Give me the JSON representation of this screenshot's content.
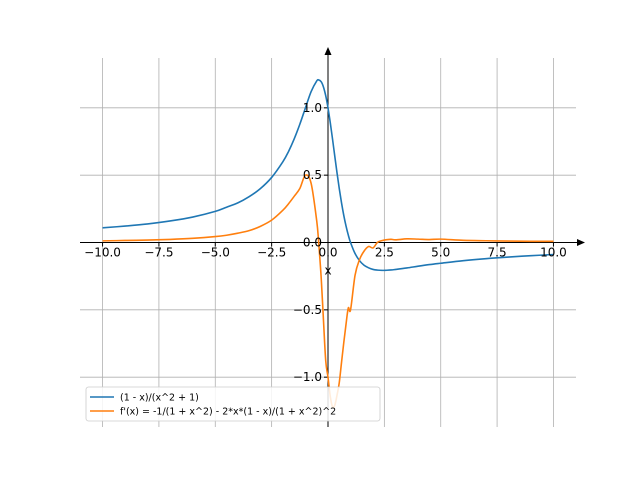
{
  "chart_data": {
    "type": "line",
    "xlabel": "x",
    "ylabel": "",
    "xlim": [
      -11.0,
      11.0
    ],
    "ylim": [
      -1.37,
      1.37
    ],
    "grid": true,
    "legend_location": "lower-left",
    "x_ticks": [
      -10.0,
      -7.5,
      -5.0,
      -2.5,
      0.0,
      2.5,
      5.0,
      7.5,
      10.0
    ],
    "x_tick_labels": [
      "−10.0",
      "−7.5",
      "−5.0",
      "−2.5",
      "0.0",
      "2.5",
      "5.0",
      "7.5",
      "10.0"
    ],
    "y_ticks": [
      -1.0,
      -0.5,
      0.0,
      0.5,
      1.0
    ],
    "y_tick_labels": [
      "−1.0",
      "−0.5",
      "0.0",
      "0.5",
      "1.0"
    ],
    "series": [
      {
        "name": "(1 - x)/(x^2 + 1)",
        "color": "#1f77b4",
        "x": [
          -10,
          -9,
          -8,
          -7,
          -6,
          -5,
          -4.5,
          -4,
          -3.5,
          -3,
          -2.5,
          -2,
          -1.75,
          -1.5,
          -1.25,
          -1,
          -0.75,
          -0.5,
          -0.414,
          -0.3,
          -0.2,
          -0.1,
          0,
          0.1,
          0.2,
          0.3,
          0.4,
          0.5,
          0.6,
          0.7,
          0.8,
          0.9,
          1,
          1.2,
          1.4,
          1.6,
          1.8,
          2,
          2.2,
          2.414,
          2.6,
          2.8,
          3,
          3.5,
          4,
          4.5,
          5,
          6,
          7,
          8,
          9,
          10
        ],
        "y": [
          0.109,
          0.122,
          0.138,
          0.16,
          0.189,
          0.231,
          0.262,
          0.294,
          0.34,
          0.4,
          0.483,
          0.6,
          0.676,
          0.769,
          0.878,
          1.0,
          1.12,
          1.2,
          1.207,
          1.193,
          1.154,
          1.089,
          1.0,
          0.891,
          0.769,
          0.642,
          0.517,
          0.4,
          0.294,
          0.201,
          0.122,
          0.055,
          0.0,
          -0.082,
          -0.135,
          -0.169,
          -0.188,
          -0.2,
          -0.205,
          -0.207,
          -0.206,
          -0.204,
          -0.2,
          -0.189,
          -0.176,
          -0.164,
          -0.154,
          -0.135,
          -0.12,
          -0.108,
          -0.098,
          -0.089
        ]
      },
      {
        "name": "f'(x) = -1/(1 + x^2) - 2*x*(1 - x)/(1 + x^2)^2",
        "color": "#ff7f0e",
        "x": [
          -10,
          -9,
          -8,
          -7,
          -6,
          -5,
          -4.5,
          -4,
          -3.5,
          -3,
          -2.5,
          -2,
          -1.75,
          -1.5,
          -1.25,
          -1,
          -0.75,
          -0.5,
          -0.414,
          -0.3,
          -0.2,
          -0.1,
          0,
          0.1,
          0.2,
          0.3,
          0.4,
          0.5,
          0.6,
          0.7,
          0.8,
          0.9,
          1,
          1.2,
          1.4,
          1.6,
          1.8,
          2,
          2.2,
          2.414,
          2.6,
          2.8,
          3,
          3.5,
          4,
          4.5,
          5,
          6,
          7,
          8,
          9,
          10
        ],
        "y": [
          0.012,
          0.015,
          0.018,
          0.023,
          0.031,
          0.044,
          0.054,
          0.069,
          0.088,
          0.12,
          0.166,
          0.24,
          0.288,
          0.343,
          0.401,
          0.5,
          0.44,
          0.16,
          0.0,
          -0.268,
          -0.58,
          -0.88,
          -1.0,
          -1.142,
          -1.22,
          -1.209,
          -1.134,
          -1.04,
          -0.89,
          -0.743,
          -0.606,
          -0.486,
          -0.5,
          -0.243,
          -0.126,
          -0.064,
          -0.03,
          -0.04,
          0.002,
          0.015,
          0.021,
          0.024,
          0.02,
          0.027,
          0.025,
          0.022,
          0.025,
          0.016,
          0.013,
          0.011,
          0.009,
          0.009
        ]
      }
    ]
  }
}
